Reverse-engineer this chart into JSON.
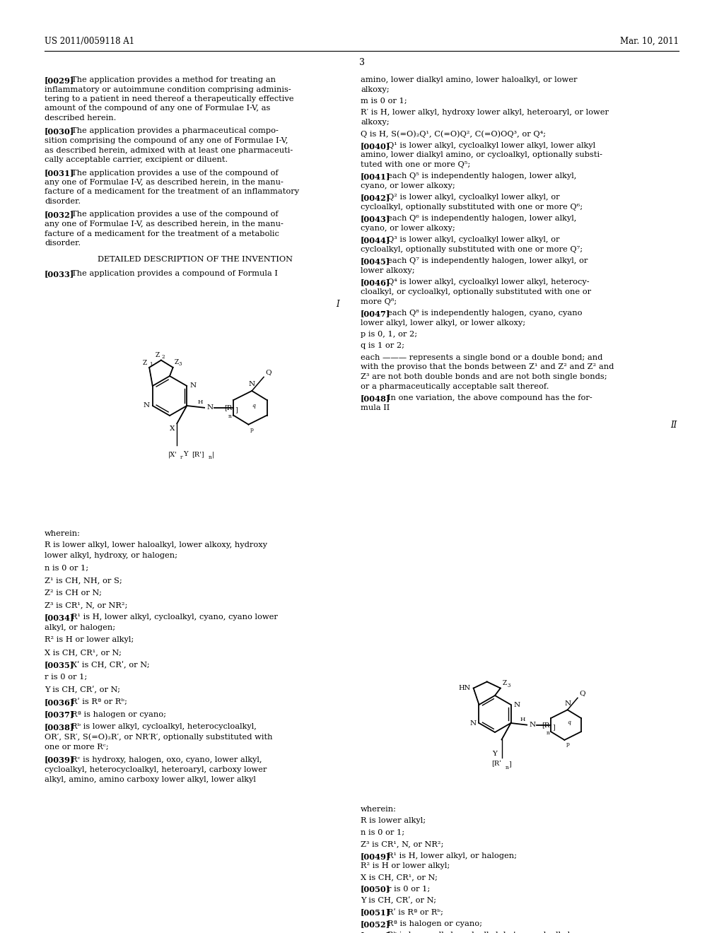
{
  "bg_color": "#ffffff",
  "page_width": 10.24,
  "page_height": 13.2,
  "header_left": "US 2011/0059118 A1",
  "header_right": "Mar. 10, 2011",
  "page_number": "3"
}
